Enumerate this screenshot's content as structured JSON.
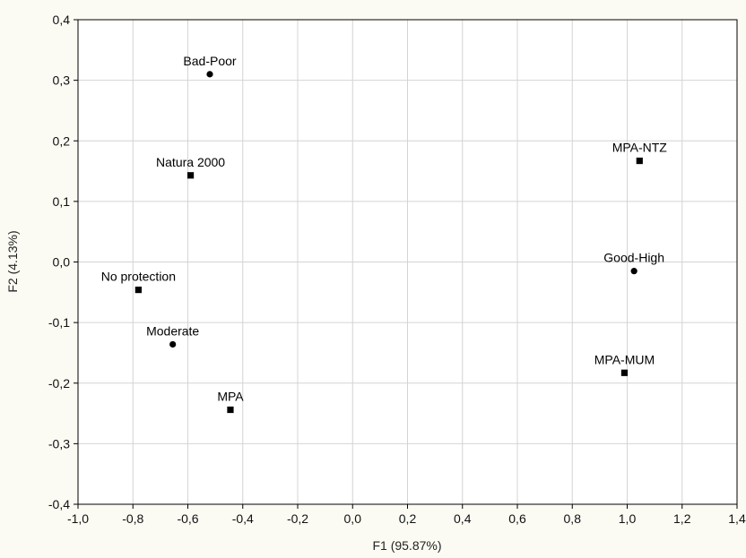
{
  "chart_data": {
    "type": "scatter",
    "title": "",
    "xlabel": "F1 (95.87%)",
    "ylabel": "F2 (4.13%)",
    "xlim": [
      -1.0,
      1.4
    ],
    "ylim": [
      -0.4,
      0.4
    ],
    "x_ticks": [
      -1.0,
      -0.8,
      -0.6,
      -0.4,
      -0.2,
      0.0,
      0.2,
      0.4,
      0.6,
      0.8,
      1.0,
      1.2,
      1.4
    ],
    "y_ticks": [
      -0.4,
      -0.3,
      -0.2,
      -0.1,
      0.0,
      0.1,
      0.2,
      0.3,
      0.4
    ],
    "x_tick_labels": [
      "-1,0",
      "-0,8",
      "-0,6",
      "-0,4",
      "-0,2",
      "0,0",
      "0,2",
      "0,4",
      "0,6",
      "0,8",
      "1,0",
      "1,2",
      "1,4"
    ],
    "y_tick_labels": [
      "-0,4",
      "-0,3",
      "-0,2",
      "-0,1",
      "0,0",
      "0,1",
      "0,2",
      "0,3",
      "0,4"
    ],
    "grid": true,
    "legend": "none",
    "colors": {
      "marker": "#000000",
      "grid": "#d4d4d4",
      "background": "#fbfbf3",
      "plot_area": "#ffffff"
    },
    "points": [
      {
        "label": "Bad-Poor",
        "x": -0.52,
        "y": 0.31,
        "marker": "circle"
      },
      {
        "label": "Natura 2000",
        "x": -0.59,
        "y": 0.143,
        "marker": "square"
      },
      {
        "label": "No protection",
        "x": -0.78,
        "y": -0.046,
        "marker": "square"
      },
      {
        "label": "Moderate",
        "x": -0.655,
        "y": -0.136,
        "marker": "circle"
      },
      {
        "label": "MPA",
        "x": -0.445,
        "y": -0.244,
        "marker": "square"
      },
      {
        "label": "MPA-NTZ",
        "x": 1.045,
        "y": 0.167,
        "marker": "square"
      },
      {
        "label": "Good-High",
        "x": 1.025,
        "y": -0.015,
        "marker": "circle"
      },
      {
        "label": "MPA-MUM",
        "x": 0.99,
        "y": -0.183,
        "marker": "square"
      }
    ]
  }
}
